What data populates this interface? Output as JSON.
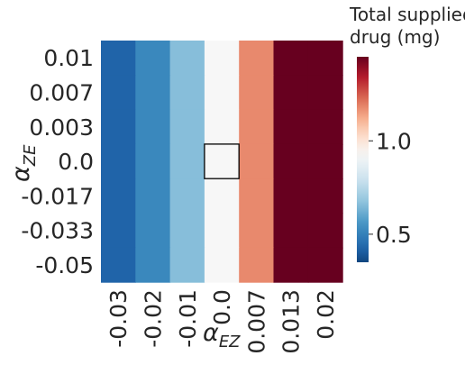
{
  "chart_data": {
    "type": "heatmap",
    "colorbar_title_lines": [
      "Total supplied",
      "drug (mg)"
    ],
    "xlabel": {
      "main": "α",
      "sub": "EZ"
    },
    "ylabel": {
      "main": "α",
      "sub": "ZE"
    },
    "x_categories": [
      "-0.03",
      "-0.02",
      "-0.01",
      "0.0",
      "0.007",
      "0.013",
      "0.02"
    ],
    "y_categories": [
      "0.01",
      "0.007",
      "0.003",
      "0.0",
      "-0.017",
      "-0.033",
      "-0.05"
    ],
    "values": [
      [
        0.42,
        0.52,
        0.66,
        0.93,
        1.18,
        1.45,
        1.45
      ],
      [
        0.42,
        0.52,
        0.66,
        0.93,
        1.18,
        1.45,
        1.45
      ],
      [
        0.42,
        0.52,
        0.66,
        0.93,
        1.18,
        1.45,
        1.45
      ],
      [
        0.42,
        0.52,
        0.66,
        0.93,
        1.18,
        1.45,
        1.45
      ],
      [
        0.42,
        0.52,
        0.66,
        0.93,
        1.18,
        1.45,
        1.45
      ],
      [
        0.42,
        0.52,
        0.66,
        0.93,
        1.18,
        1.45,
        1.45
      ],
      [
        0.42,
        0.52,
        0.66,
        0.93,
        1.18,
        1.45,
        1.45
      ]
    ],
    "colorbar": {
      "colormap": "RdBu_r",
      "vmin": 0.35,
      "vmax": 1.45,
      "ticks": [
        0.5,
        1.0
      ],
      "tick_labels": [
        "0.5",
        "1.0"
      ]
    },
    "highlight_cell": {
      "x": "0.0",
      "y": "0.0"
    },
    "grid": false
  }
}
